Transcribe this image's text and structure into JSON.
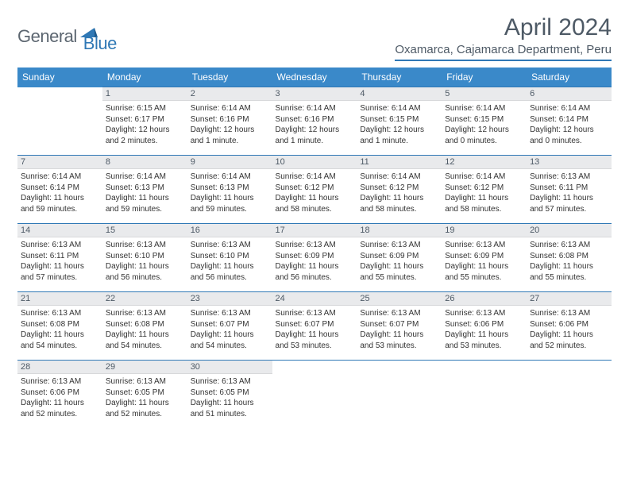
{
  "logo": {
    "text1": "General",
    "text2": "Blue"
  },
  "title": "April 2024",
  "location": "Oxamarca, Cajamarca Department, Peru",
  "colors": {
    "header_bg": "#3a89c9",
    "accent": "#2f78b5",
    "daynum_bg": "#e9eaec",
    "text": "#4e5a66"
  },
  "day_headers": [
    "Sunday",
    "Monday",
    "Tuesday",
    "Wednesday",
    "Thursday",
    "Friday",
    "Saturday"
  ],
  "weeks": [
    [
      {
        "n": "",
        "sunrise": "",
        "sunset": "",
        "daylight": ""
      },
      {
        "n": "1",
        "sunrise": "Sunrise: 6:15 AM",
        "sunset": "Sunset: 6:17 PM",
        "daylight": "Daylight: 12 hours and 2 minutes."
      },
      {
        "n": "2",
        "sunrise": "Sunrise: 6:14 AM",
        "sunset": "Sunset: 6:16 PM",
        "daylight": "Daylight: 12 hours and 1 minute."
      },
      {
        "n": "3",
        "sunrise": "Sunrise: 6:14 AM",
        "sunset": "Sunset: 6:16 PM",
        "daylight": "Daylight: 12 hours and 1 minute."
      },
      {
        "n": "4",
        "sunrise": "Sunrise: 6:14 AM",
        "sunset": "Sunset: 6:15 PM",
        "daylight": "Daylight: 12 hours and 1 minute."
      },
      {
        "n": "5",
        "sunrise": "Sunrise: 6:14 AM",
        "sunset": "Sunset: 6:15 PM",
        "daylight": "Daylight: 12 hours and 0 minutes."
      },
      {
        "n": "6",
        "sunrise": "Sunrise: 6:14 AM",
        "sunset": "Sunset: 6:14 PM",
        "daylight": "Daylight: 12 hours and 0 minutes."
      }
    ],
    [
      {
        "n": "7",
        "sunrise": "Sunrise: 6:14 AM",
        "sunset": "Sunset: 6:14 PM",
        "daylight": "Daylight: 11 hours and 59 minutes."
      },
      {
        "n": "8",
        "sunrise": "Sunrise: 6:14 AM",
        "sunset": "Sunset: 6:13 PM",
        "daylight": "Daylight: 11 hours and 59 minutes."
      },
      {
        "n": "9",
        "sunrise": "Sunrise: 6:14 AM",
        "sunset": "Sunset: 6:13 PM",
        "daylight": "Daylight: 11 hours and 59 minutes."
      },
      {
        "n": "10",
        "sunrise": "Sunrise: 6:14 AM",
        "sunset": "Sunset: 6:12 PM",
        "daylight": "Daylight: 11 hours and 58 minutes."
      },
      {
        "n": "11",
        "sunrise": "Sunrise: 6:14 AM",
        "sunset": "Sunset: 6:12 PM",
        "daylight": "Daylight: 11 hours and 58 minutes."
      },
      {
        "n": "12",
        "sunrise": "Sunrise: 6:14 AM",
        "sunset": "Sunset: 6:12 PM",
        "daylight": "Daylight: 11 hours and 58 minutes."
      },
      {
        "n": "13",
        "sunrise": "Sunrise: 6:13 AM",
        "sunset": "Sunset: 6:11 PM",
        "daylight": "Daylight: 11 hours and 57 minutes."
      }
    ],
    [
      {
        "n": "14",
        "sunrise": "Sunrise: 6:13 AM",
        "sunset": "Sunset: 6:11 PM",
        "daylight": "Daylight: 11 hours and 57 minutes."
      },
      {
        "n": "15",
        "sunrise": "Sunrise: 6:13 AM",
        "sunset": "Sunset: 6:10 PM",
        "daylight": "Daylight: 11 hours and 56 minutes."
      },
      {
        "n": "16",
        "sunrise": "Sunrise: 6:13 AM",
        "sunset": "Sunset: 6:10 PM",
        "daylight": "Daylight: 11 hours and 56 minutes."
      },
      {
        "n": "17",
        "sunrise": "Sunrise: 6:13 AM",
        "sunset": "Sunset: 6:09 PM",
        "daylight": "Daylight: 11 hours and 56 minutes."
      },
      {
        "n": "18",
        "sunrise": "Sunrise: 6:13 AM",
        "sunset": "Sunset: 6:09 PM",
        "daylight": "Daylight: 11 hours and 55 minutes."
      },
      {
        "n": "19",
        "sunrise": "Sunrise: 6:13 AM",
        "sunset": "Sunset: 6:09 PM",
        "daylight": "Daylight: 11 hours and 55 minutes."
      },
      {
        "n": "20",
        "sunrise": "Sunrise: 6:13 AM",
        "sunset": "Sunset: 6:08 PM",
        "daylight": "Daylight: 11 hours and 55 minutes."
      }
    ],
    [
      {
        "n": "21",
        "sunrise": "Sunrise: 6:13 AM",
        "sunset": "Sunset: 6:08 PM",
        "daylight": "Daylight: 11 hours and 54 minutes."
      },
      {
        "n": "22",
        "sunrise": "Sunrise: 6:13 AM",
        "sunset": "Sunset: 6:08 PM",
        "daylight": "Daylight: 11 hours and 54 minutes."
      },
      {
        "n": "23",
        "sunrise": "Sunrise: 6:13 AM",
        "sunset": "Sunset: 6:07 PM",
        "daylight": "Daylight: 11 hours and 54 minutes."
      },
      {
        "n": "24",
        "sunrise": "Sunrise: 6:13 AM",
        "sunset": "Sunset: 6:07 PM",
        "daylight": "Daylight: 11 hours and 53 minutes."
      },
      {
        "n": "25",
        "sunrise": "Sunrise: 6:13 AM",
        "sunset": "Sunset: 6:07 PM",
        "daylight": "Daylight: 11 hours and 53 minutes."
      },
      {
        "n": "26",
        "sunrise": "Sunrise: 6:13 AM",
        "sunset": "Sunset: 6:06 PM",
        "daylight": "Daylight: 11 hours and 53 minutes."
      },
      {
        "n": "27",
        "sunrise": "Sunrise: 6:13 AM",
        "sunset": "Sunset: 6:06 PM",
        "daylight": "Daylight: 11 hours and 52 minutes."
      }
    ],
    [
      {
        "n": "28",
        "sunrise": "Sunrise: 6:13 AM",
        "sunset": "Sunset: 6:06 PM",
        "daylight": "Daylight: 11 hours and 52 minutes."
      },
      {
        "n": "29",
        "sunrise": "Sunrise: 6:13 AM",
        "sunset": "Sunset: 6:05 PM",
        "daylight": "Daylight: 11 hours and 52 minutes."
      },
      {
        "n": "30",
        "sunrise": "Sunrise: 6:13 AM",
        "sunset": "Sunset: 6:05 PM",
        "daylight": "Daylight: 11 hours and 51 minutes."
      },
      {
        "n": "",
        "sunrise": "",
        "sunset": "",
        "daylight": ""
      },
      {
        "n": "",
        "sunrise": "",
        "sunset": "",
        "daylight": ""
      },
      {
        "n": "",
        "sunrise": "",
        "sunset": "",
        "daylight": ""
      },
      {
        "n": "",
        "sunrise": "",
        "sunset": "",
        "daylight": ""
      }
    ]
  ]
}
